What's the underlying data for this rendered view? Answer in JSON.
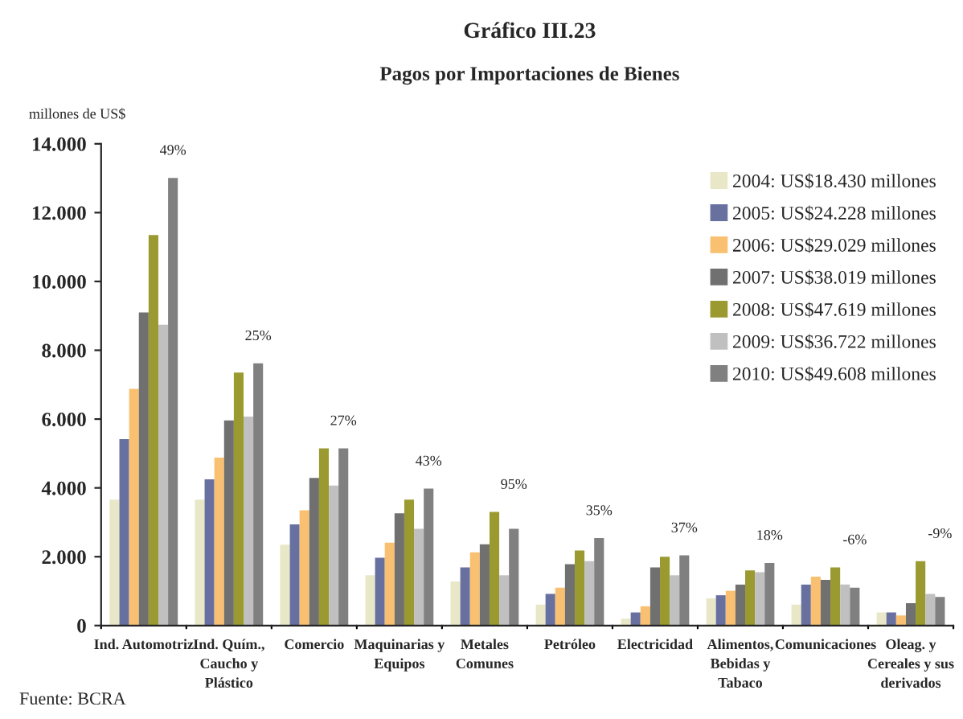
{
  "chart_data": {
    "type": "bar",
    "title": "Gráfico III.23",
    "subtitle": "Pagos por Importaciones de Bienes",
    "ylabel": "millones de US$",
    "categories": [
      "Ind. Automotriz",
      "Ind. Quím.,\nCaucho y\nPlástico",
      "Comercio",
      "Maquinarias y\nEquipos",
      "Metales\nComunes",
      "Petróleo",
      "Electricidad",
      "Alimentos,\nBebidas y\nTabaco",
      "Comunicaciones",
      "Oleag. y\nCereales y sus\nderivados"
    ],
    "series": [
      {
        "name": "2004: US$18.430 millones",
        "color": "#e8e8c8",
        "values": [
          3660,
          3660,
          2350,
          1460,
          1280,
          610,
          200,
          790,
          610,
          380
        ]
      },
      {
        "name": "2005: US$24.228 millones",
        "color": "#6870a0",
        "values": [
          5420,
          4250,
          2940,
          1970,
          1690,
          920,
          380,
          880,
          1190,
          380
        ]
      },
      {
        "name": "2006: US$29.029 millones",
        "color": "#f8c070",
        "values": [
          6880,
          4880,
          3350,
          2410,
          2130,
          1100,
          560,
          1010,
          1420,
          290
        ]
      },
      {
        "name": "2007: US$38.019 millones",
        "color": "#707070",
        "values": [
          9100,
          5960,
          4290,
          3260,
          2360,
          1780,
          1690,
          1190,
          1330,
          650
        ]
      },
      {
        "name": "2008: US$47.619 millones",
        "color": "#9a9a30",
        "values": [
          11350,
          7350,
          5150,
          3660,
          3300,
          2180,
          2000,
          1600,
          1690,
          1870
        ]
      },
      {
        "name": "2009: US$36.722 millones",
        "color": "#c0c0c0",
        "values": [
          8740,
          6070,
          4070,
          2810,
          1460,
          1870,
          1460,
          1550,
          1190,
          920
        ]
      },
      {
        "name": "2010: US$49.608 millones",
        "color": "#808080",
        "values": [
          13010,
          7620,
          5150,
          3980,
          2810,
          2540,
          2040,
          1820,
          1100,
          830
        ]
      }
    ],
    "ylim": [
      0,
      14000
    ],
    "yticks": [
      {
        "value": 0,
        "label": "0"
      },
      {
        "value": 2000,
        "label": "2.000"
      },
      {
        "value": 4000,
        "label": "4.000"
      },
      {
        "value": 6000,
        "label": "6.000"
      },
      {
        "value": 8000,
        "label": "8.000"
      },
      {
        "value": 10000,
        "label": "10.000"
      },
      {
        "value": 12000,
        "label": "12.000"
      },
      {
        "value": 14000,
        "label": "14.000"
      }
    ],
    "grid": false,
    "legend": "right",
    "annotations": [
      "49%",
      "25%",
      "27%",
      "43%",
      "95%",
      "35%",
      "37%",
      "18%",
      "-6%",
      "-9%",
      "Fuente: BCRA"
    ]
  }
}
